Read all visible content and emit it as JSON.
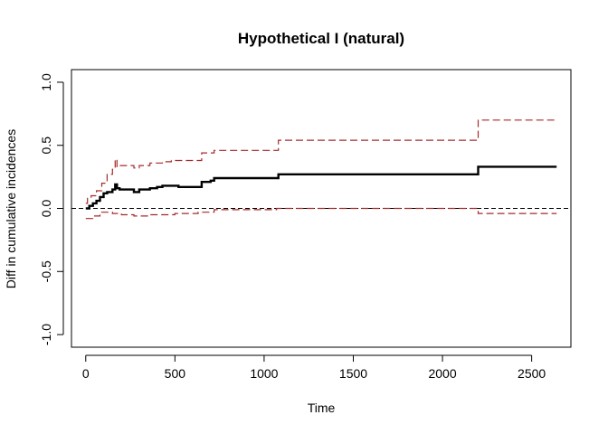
{
  "chart_data": {
    "type": "line",
    "title": "Hypothetical I (natural)",
    "xlabel": "Time",
    "ylabel": "Diff in cumulative incidences",
    "xlim": [
      -80,
      2720
    ],
    "ylim": [
      -1.1,
      1.1
    ],
    "x_ticks": [
      0,
      500,
      1000,
      1500,
      2000,
      2500
    ],
    "x_tick_labels": [
      "0",
      "500",
      "1000",
      "1500",
      "2000",
      "2500"
    ],
    "y_ticks": [
      -1.0,
      -0.5,
      0.0,
      0.5,
      1.0
    ],
    "y_tick_labels": [
      "-1.0",
      "-0.5",
      "0.0",
      "0.5",
      "1.0"
    ],
    "grid": false,
    "reference_line": {
      "y": 0,
      "color": "#000000",
      "style": "dashed"
    },
    "series": [
      {
        "role": "estimate",
        "color": "#000000",
        "style": "solid-step",
        "x": [
          0,
          20,
          40,
          60,
          80,
          100,
          120,
          150,
          165,
          175,
          190,
          270,
          300,
          360,
          400,
          430,
          480,
          520,
          630,
          650,
          700,
          720,
          1070,
          1080,
          2190,
          2200,
          2640
        ],
        "y": [
          0.0,
          0.02,
          0.04,
          0.06,
          0.09,
          0.12,
          0.13,
          0.15,
          0.19,
          0.16,
          0.15,
          0.13,
          0.15,
          0.16,
          0.17,
          0.18,
          0.18,
          0.17,
          0.17,
          0.21,
          0.22,
          0.24,
          0.24,
          0.27,
          0.27,
          0.33,
          0.33
        ]
      },
      {
        "role": "upper-confidence-bound",
        "color": "#a52a2a",
        "style": "dashed-step",
        "x": [
          0,
          10,
          30,
          60,
          90,
          120,
          150,
          165,
          175,
          190,
          270,
          300,
          360,
          430,
          480,
          630,
          650,
          720,
          1070,
          1080,
          2190,
          2200,
          2640
        ],
        "y": [
          0.04,
          0.08,
          0.1,
          0.14,
          0.2,
          0.27,
          0.31,
          0.39,
          0.33,
          0.34,
          0.32,
          0.34,
          0.36,
          0.37,
          0.38,
          0.38,
          0.44,
          0.46,
          0.46,
          0.54,
          0.54,
          0.7,
          0.7
        ]
      },
      {
        "role": "lower-confidence-bound",
        "color": "#a52a2a",
        "style": "dashed-step",
        "x": [
          0,
          40,
          80,
          150,
          200,
          270,
          360,
          500,
          630,
          720,
          1070,
          2190,
          2200,
          2640
        ],
        "y": [
          -0.08,
          -0.06,
          -0.03,
          -0.04,
          -0.05,
          -0.06,
          -0.05,
          -0.04,
          -0.03,
          -0.01,
          0.0,
          0.0,
          -0.04,
          -0.04
        ]
      }
    ]
  }
}
